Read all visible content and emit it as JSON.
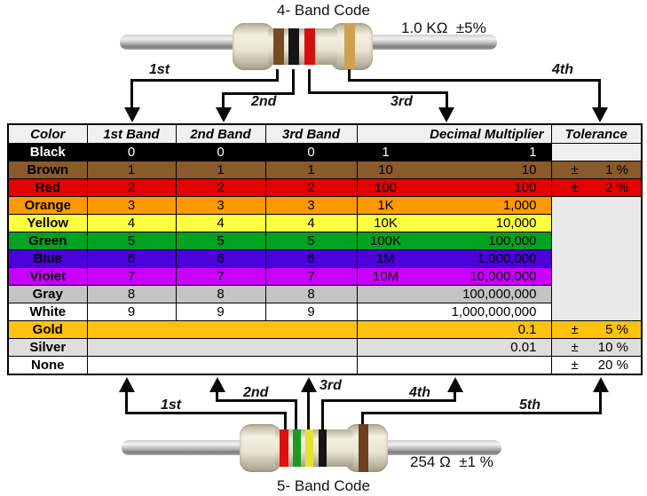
{
  "top": {
    "title": "4- Band Code",
    "value_label": "1.0 KΩ  ±5%",
    "arrows": [
      {
        "label": "1st"
      },
      {
        "label": "2nd"
      },
      {
        "label": "3rd"
      },
      {
        "label": "4th"
      }
    ],
    "bands": [
      {
        "name": "brown",
        "color": "#7a4a21"
      },
      {
        "name": "black",
        "color": "#151515"
      },
      {
        "name": "red",
        "color": "#d51010"
      },
      {
        "name": "gold",
        "color": "#cfa14e"
      }
    ]
  },
  "bottom": {
    "title": "5- Band Code",
    "value_label": "254 Ω  ±1 %",
    "arrows": [
      {
        "label": "1st"
      },
      {
        "label": "2nd"
      },
      {
        "label": "3rd"
      },
      {
        "label": "4th"
      },
      {
        "label": "5th"
      }
    ],
    "bands": [
      {
        "name": "red",
        "color": "#dd0f0f"
      },
      {
        "name": "green",
        "color": "#1d9a1d"
      },
      {
        "name": "yellow",
        "color": "#e8e02e"
      },
      {
        "name": "black",
        "color": "#151515"
      },
      {
        "name": "brown",
        "color": "#6f3f1c"
      }
    ]
  },
  "table": {
    "headers": [
      "Color",
      "1st Band",
      "2nd Band",
      "3rd Band",
      "Decimal Multiplier",
      "Tolerance"
    ],
    "tolerance_sign": "±",
    "header_bg": "#f0f0f0",
    "rows": [
      {
        "color": "Black",
        "bg": "#000000",
        "fg": "#ffffff",
        "bands": [
          "0",
          "0",
          "0"
        ],
        "mult_short": "1",
        "mult_full": "1",
        "tolerance": "",
        "tol_bg": "#efefef"
      },
      {
        "color": "Brown",
        "bg": "#8a5a2b",
        "fg": "#000000",
        "bands": [
          "1",
          "1",
          "1"
        ],
        "mult_short": "10",
        "mult_full": "10",
        "tolerance": "1 %"
      },
      {
        "color": "Red",
        "bg": "#e60000",
        "fg": "#000000",
        "bands": [
          "2",
          "2",
          "2"
        ],
        "mult_short": "100",
        "mult_full": "100",
        "tolerance": "2 %"
      },
      {
        "color": "Orange",
        "bg": "#ff9900",
        "fg": "#000000",
        "bands": [
          "3",
          "3",
          "3"
        ],
        "mult_short": "1K",
        "mult_full": "1,000",
        "tol_rowspan": 7,
        "tol_bg": "#e9e9e9"
      },
      {
        "color": "Yellow",
        "bg": "#ffff40",
        "fg": "#000000",
        "bands": [
          "4",
          "4",
          "4"
        ],
        "mult_short": "10K",
        "mult_full": "10,000",
        "tol_skip": true
      },
      {
        "color": "Green",
        "bg": "#00a221",
        "fg": "#000000",
        "bands": [
          "5",
          "5",
          "5"
        ],
        "mult_short": "100K",
        "mult_full": "100,000",
        "tol_skip": true
      },
      {
        "color": "Blue",
        "bg": "#4b00dc",
        "fg": "#000000",
        "bands": [
          "6",
          "6",
          "6"
        ],
        "mult_short": "1M",
        "mult_full": "1,000,000",
        "tol_skip": true
      },
      {
        "color": "Violet",
        "bg": "#c800ff",
        "fg": "#000000",
        "bands": [
          "7",
          "7",
          "7"
        ],
        "mult_short": "10M",
        "mult_full": "10,000,000",
        "tol_skip": true
      },
      {
        "color": "Gray",
        "bg": "#c4c4c4",
        "fg": "#000000",
        "bands": [
          "8",
          "8",
          "8"
        ],
        "mult_short": "",
        "mult_full": "100,000,000",
        "tol_skip": true
      },
      {
        "color": "White",
        "bg": "#ffffff",
        "fg": "#000000",
        "bands": [
          "9",
          "9",
          "9"
        ],
        "mult_short": "",
        "mult_full": "1,000,000,000",
        "tol_skip": true
      },
      {
        "color": "Gold",
        "bg": "#ffc20e",
        "fg": "#000000",
        "bands_merged": true,
        "mult_short": "",
        "mult_full": "0.1",
        "tolerance": "5 %"
      },
      {
        "color": "Silver",
        "bg": "#dedede",
        "fg": "#000000",
        "bands_merged": true,
        "mult_short": "",
        "mult_full": "0.01",
        "tolerance": "10 %"
      },
      {
        "color": "None",
        "bg": "#ffffff",
        "fg": "#000000",
        "bands_merged": true,
        "mult_short": "",
        "mult_full": "",
        "tolerance": "20 %"
      }
    ]
  }
}
